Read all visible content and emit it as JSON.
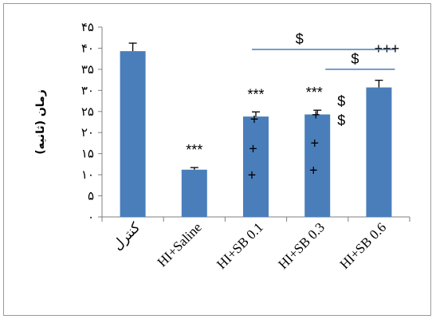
{
  "chart_data": {
    "type": "bar",
    "ylabel": "زمان (ثانیه)",
    "ylim": [
      0,
      45
    ],
    "yticks": [
      0,
      5,
      10,
      15,
      20,
      25,
      30,
      35,
      40,
      45
    ],
    "ytick_labels": [
      "۰",
      "۵",
      "۱۰",
      "۱۵",
      "۲۰",
      "۲۵",
      "۳۰",
      "۳۵",
      "۴۰",
      "۴۵"
    ],
    "categories": [
      "کنترل",
      "HI+Saline",
      "HI+SB 0.1",
      "HI+SB 0.3",
      "HI+SB 0.6"
    ],
    "values": [
      39.3,
      11.2,
      23.8,
      24.3,
      30.7
    ],
    "errors": [
      1.9,
      0.5,
      1.1,
      1.0,
      1.7
    ],
    "bar_color": "#4a7ebb",
    "significance": {
      "stars": [
        "",
        "***",
        "***",
        "***",
        ""
      ],
      "pluses": [
        {
          "index": 2,
          "values": [
            23.2,
            16.2,
            9.9
          ]
        },
        {
          "index": 3,
          "values": [
            24.2,
            17.5,
            11.1
          ]
        },
        {
          "index": 4,
          "values": [
            39.9
          ]
        }
      ],
      "plus_marks": [
        "+",
        "+++"
      ],
      "dollar_marks": [
        {
          "index": 3,
          "values": [
            22.9,
            27.4
          ]
        }
      ],
      "dollar_symbol": "$",
      "brackets": [
        {
          "from": 2,
          "to": 4,
          "y": 39.7,
          "label": "$"
        },
        {
          "from": 3,
          "to": 4,
          "y": 35.0,
          "label": "$"
        }
      ]
    },
    "grid": false,
    "legend": "none"
  }
}
